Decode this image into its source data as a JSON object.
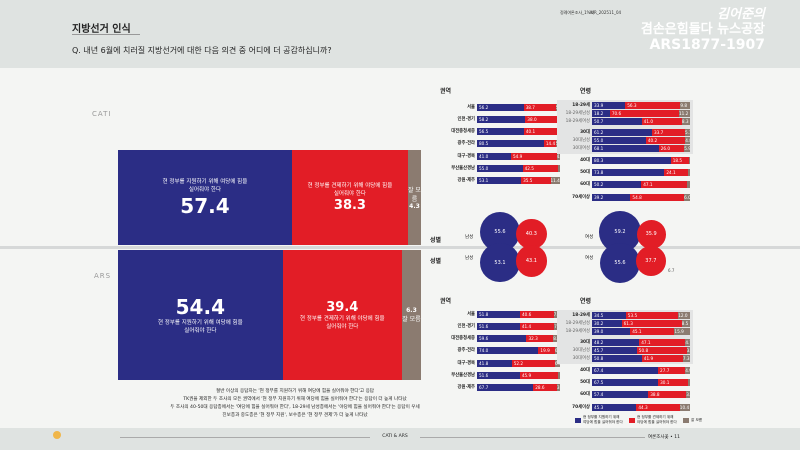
{
  "header": {
    "title": "지방선거 인식",
    "question": "Q. 내년 6월에 치러질 지방선거에 대한 다음 의견 중 어디에 더 공감하십니까?",
    "meta1": "정례여론조사_1%차",
    "meta2": "WR_202511_04",
    "logo": {
      "line1": "김어준의",
      "line2": "겸손은힘들다 뉴스공장",
      "line3": "ARS1877-1907"
    }
  },
  "colors": {
    "support": "#2b2d85",
    "check": "#e21d26",
    "dk": "#8b7b70"
  },
  "options": {
    "support": "현 정부를 지원하기 위해 여당에 힘을 실어줘야 한다",
    "check": "현 정부를 견제하기 위해 야당에 힘을 실어줘야 한다",
    "dk": "잘 모름"
  },
  "chart_data": [
    {
      "type": "bar",
      "name": "CATI",
      "orientation": "horizontal",
      "stacked": true,
      "categories": [
        "전체"
      ],
      "series": [
        {
          "name": "현 정부를 지원하기 위해 여당에 힘을 실어줘야 한다",
          "values": [
            57.4
          ]
        },
        {
          "name": "현 정부를 견제하기 위해 야당에 힘을 실어줘야 한다",
          "values": [
            38.3
          ]
        },
        {
          "name": "잘 모름",
          "values": [
            4.3
          ]
        }
      ],
      "display": {
        "support": "57.4",
        "check": "38.3",
        "dk": "4.3"
      }
    },
    {
      "type": "bar",
      "name": "ARS",
      "orientation": "horizontal",
      "stacked": true,
      "categories": [
        "전체"
      ],
      "series": [
        {
          "name": "현 정부를 지원하기 위해 여당에 힘을 실어줘야 한다",
          "values": [
            54.4
          ]
        },
        {
          "name": "현 정부를 견제하기 위해 야당에 힘을 실어줘야 한다",
          "values": [
            39.4
          ]
        },
        {
          "name": "잘 모름",
          "values": [
            6.3
          ]
        }
      ],
      "display": {
        "support": "54.4",
        "check": "39.4",
        "dk": "6.3"
      }
    },
    {
      "type": "bar",
      "title": "권역",
      "survey": "CATI",
      "stacked": true,
      "rows": [
        {
          "label": "서울",
          "v": [
            56.2,
            38.7,
            5.1
          ]
        },
        {
          "label": "인천·경기",
          "v": [
            58.2,
            38.0,
            3.8
          ]
        },
        {
          "label": "대전충청세종",
          "v": [
            56.5,
            40.1,
            3.4
          ]
        },
        {
          "label": "광주·전라",
          "v": [
            80.5,
            14.4,
            5.1
          ]
        },
        {
          "label": "대구·경북",
          "v": [
            41.0,
            54.9,
            4.1
          ]
        },
        {
          "label": "부산울산경남",
          "v": [
            55.0,
            42.5,
            2.5
          ]
        },
        {
          "label": "강원·제주",
          "v": [
            53.1,
            35.5,
            11.4
          ]
        }
      ]
    },
    {
      "type": "bar",
      "title": "연령",
      "survey": "CATI",
      "stacked": true,
      "rows": [
        {
          "label": "18-29세",
          "v": [
            33.9,
            56.3,
            9.8
          ],
          "grp": 1,
          "main": true
        },
        {
          "label": "18-29세남성",
          "v": [
            18.2,
            70.6,
            11.2
          ],
          "grp": 1
        },
        {
          "label": "18-29세여성",
          "v": [
            50.7,
            41.0,
            8.3
          ],
          "grp": 1
        },
        {
          "label": "30대",
          "v": [
            61.2,
            33.7,
            5.1
          ],
          "grp": 2,
          "main": true
        },
        {
          "label": "30대남성",
          "v": [
            55.0,
            40.2,
            4.8
          ],
          "grp": 2
        },
        {
          "label": "30대여성",
          "v": [
            68.1,
            26.0,
            5.9
          ],
          "grp": 2
        },
        {
          "label": "40대",
          "v": [
            80.3,
            18.5,
            1.2
          ],
          "main": true
        },
        {
          "label": "50대",
          "v": [
            73.8,
            24.1,
            2.1
          ],
          "main": true
        },
        {
          "label": "60대",
          "v": [
            50.2,
            47.1,
            2.7
          ],
          "main": true
        },
        {
          "label": "70세이상",
          "v": [
            39.2,
            54.8,
            6.0
          ],
          "main": true
        }
      ]
    },
    {
      "type": "bar",
      "title": "권역",
      "survey": "ARS",
      "stacked": true,
      "rows": [
        {
          "label": "서울",
          "v": [
            51.8,
            40.6,
            7.6
          ]
        },
        {
          "label": "인천·경기",
          "v": [
            51.6,
            41.4,
            7.0
          ]
        },
        {
          "label": "대전충청세종",
          "v": [
            59.6,
            32.3,
            8.1
          ]
        },
        {
          "label": "광주·전라",
          "v": [
            74.0,
            19.9,
            6.1
          ]
        },
        {
          "label": "대구·경북",
          "v": [
            41.8,
            52.2,
            6.0
          ]
        },
        {
          "label": "부산울산경남",
          "v": [
            51.6,
            45.9,
            2.5
          ]
        },
        {
          "label": "강원·제주",
          "v": [
            67.7,
            28.6,
            3.7
          ]
        }
      ]
    },
    {
      "type": "bar",
      "title": "연령",
      "survey": "ARS",
      "stacked": true,
      "rows": [
        {
          "label": "18-29세",
          "v": [
            34.5,
            53.5,
            12.0
          ],
          "grp": 1,
          "main": true
        },
        {
          "label": "18-29세남성",
          "v": [
            30.2,
            61.3,
            8.5
          ],
          "grp": 1
        },
        {
          "label": "18-29세여성",
          "v": [
            39.0,
            45.1,
            15.9
          ],
          "grp": 1
        },
        {
          "label": "30대",
          "v": [
            48.2,
            47.1,
            4.7
          ],
          "grp": 2,
          "main": true
        },
        {
          "label": "30대남성",
          "v": [
            45.7,
            50.8,
            3.5
          ],
          "grp": 2
        },
        {
          "label": "30대여성",
          "v": [
            50.8,
            41.9,
            7.3
          ],
          "grp": 2
        },
        {
          "label": "40대",
          "v": [
            67.4,
            27.7,
            4.9
          ],
          "main": true
        },
        {
          "label": "50대",
          "v": [
            67.5,
            30.1,
            2.4
          ],
          "main": true
        },
        {
          "label": "60대",
          "v": [
            57.4,
            38.8,
            3.8
          ],
          "main": true
        },
        {
          "label": "70세이상",
          "v": [
            45.3,
            44.3,
            10.4
          ],
          "main": true
        }
      ]
    },
    {
      "type": "bubble",
      "title": "성별",
      "rows": [
        {
          "survey": "CATI",
          "label": "남성",
          "support": 55.6,
          "check": 40.3
        },
        {
          "survey": "CATI",
          "label": "여성",
          "support": 59.2,
          "check": 35.9
        },
        {
          "survey": "ARS",
          "label": "남성",
          "support": 53.1,
          "check": 43.1
        },
        {
          "survey": "ARS",
          "label": "여성",
          "support": 55.6,
          "check": 37.7,
          "dk": 6.7
        }
      ]
    }
  ],
  "notes": [
    "절반 이상의 응답자는 '현 정부를 지원하기 위해 여당에 힘을 실어줘야 한다'고 응답",
    "TK권을 제외한 두 조사의 모든 권역에서 '현 정부 지원하기 위해 여당에 힘을 실어줘야 한다'는 응답이 더 높게 나타났",
    "두 조사의 40-50대 응답층에서는 '여당에 힘을 실어줘야 한다', 18-29세 남성층에서는 '야당에 힘을 실어줘야 한다'는 응답이 우세",
    "진보층과 중도층은 '현 정부 지원', 보수층은 '현 정부 견제'가 더 높게 나타났"
  ],
  "footer": {
    "center": "CATI & ARS",
    "right": "여론조사꽃 • 11"
  }
}
